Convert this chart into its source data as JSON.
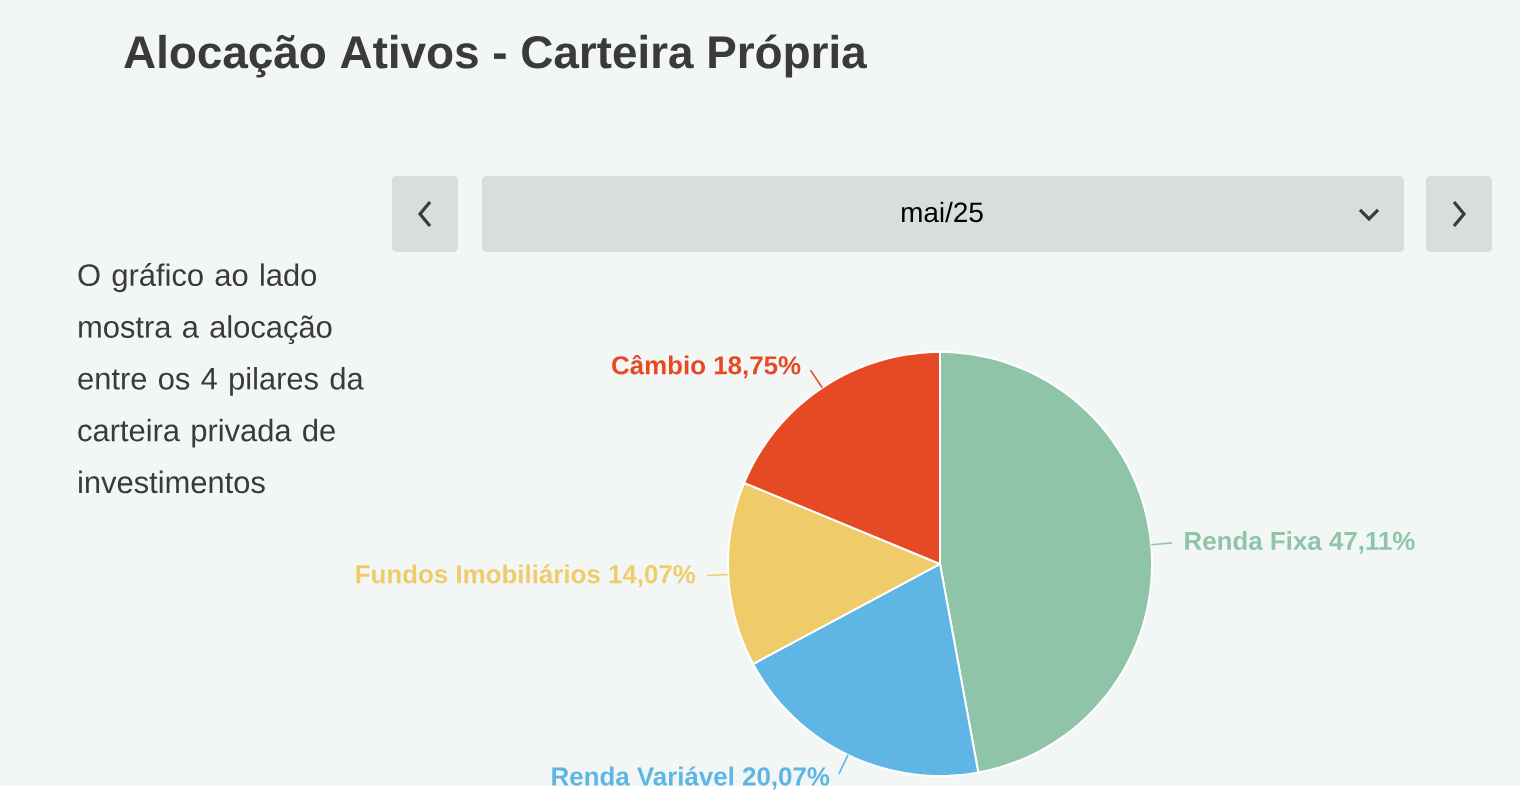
{
  "chart_data": {
    "type": "pie",
    "title": "Alocação Ativos - Carteira Própria",
    "subtitle": "mai/25",
    "annotations": [
      "O gráfico ao lado mostra a alocação entre os 4 pilares da carteira privada de investimentos"
    ],
    "categories": [
      "Renda Fixa",
      "Renda Variável",
      "Fundos Imobiliários",
      "Câmbio"
    ],
    "values": [
      47.11,
      20.07,
      14.07,
      18.75
    ],
    "value_labels": [
      "47,11%",
      "20,07%",
      "14,07%",
      "18,75%"
    ],
    "colors": [
      "#8fc4a8",
      "#5fb5e3",
      "#f0cb6a",
      "#e64a25"
    ]
  }
}
